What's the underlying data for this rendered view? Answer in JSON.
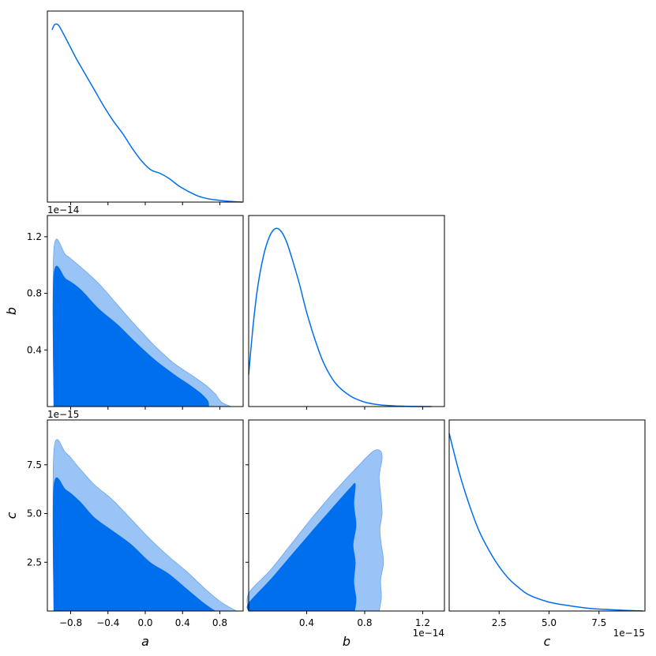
{
  "chart_data": {
    "type": "corner",
    "parameters": [
      "a",
      "b",
      "c"
    ],
    "colors": {
      "line": "#006FED",
      "inner_fill": "#006FED",
      "outer_fill": "#9AC3F6",
      "frame": "#000000"
    },
    "ranges": {
      "a": [
        -1.05,
        1.05
      ],
      "b": [
        0.0,
        1.35e-14
      ],
      "c": [
        0.0,
        9.8e-15
      ]
    },
    "ticks": {
      "a": {
        "values": [
          -0.8,
          -0.4,
          0.0,
          0.4,
          0.8
        ],
        "labels": [
          "−0.8",
          "−0.4",
          "0.0",
          "0.4",
          "0.8"
        ]
      },
      "b": {
        "values": [
          4e-15,
          8e-15,
          1.2e-14
        ],
        "labels": [
          "0.4",
          "0.8",
          "1.2"
        ],
        "offset": "1e−14"
      },
      "c": {
        "values": [
          2.5e-15,
          5e-15,
          7.5e-15
        ],
        "labels": [
          "2.5",
          "5.0",
          "7.5"
        ],
        "offset": "1e−15"
      }
    },
    "marginals": [
      {
        "param": "a",
        "x": [
          -1.0,
          -0.97,
          -0.93,
          -0.88,
          -0.82,
          -0.74,
          -0.64,
          -0.54,
          -0.44,
          -0.34,
          -0.24,
          -0.14,
          -0.04,
          0.06,
          0.16,
          0.26,
          0.36,
          0.46,
          0.56,
          0.66,
          0.76,
          0.86,
          0.96,
          1.04
        ],
        "y": [
          0.96,
          0.99,
          0.985,
          0.94,
          0.88,
          0.8,
          0.71,
          0.62,
          0.53,
          0.45,
          0.38,
          0.3,
          0.23,
          0.18,
          0.16,
          0.13,
          0.09,
          0.06,
          0.035,
          0.02,
          0.012,
          0.006,
          0.002,
          0.0
        ]
      },
      {
        "param": "b",
        "x": [
          0.0,
          3e-16,
          6e-16,
          1e-15,
          1.4e-15,
          1.8e-15,
          2.2e-15,
          2.6e-15,
          3e-15,
          3.5e-15,
          4e-15,
          4.6e-15,
          5.2e-15,
          6e-15,
          7e-15,
          8e-15,
          9e-15,
          1e-14,
          1.1e-14,
          1.2e-14,
          1.26e-14
        ],
        "y": [
          0.18,
          0.45,
          0.66,
          0.84,
          0.95,
          1.0,
          0.99,
          0.93,
          0.83,
          0.69,
          0.53,
          0.37,
          0.24,
          0.13,
          0.06,
          0.025,
          0.01,
          0.004,
          0.001,
          0.0,
          0.0
        ]
      },
      {
        "param": "c",
        "x": [
          0.0,
          5e-16,
          1e-15,
          1.5e-15,
          2e-15,
          2.5e-15,
          3e-15,
          3.5e-15,
          4e-15,
          5e-15,
          6e-15,
          7e-15,
          8e-15,
          9e-15,
          9.7e-15
        ],
        "y": [
          1.0,
          0.78,
          0.6,
          0.45,
          0.34,
          0.25,
          0.18,
          0.13,
          0.09,
          0.05,
          0.03,
          0.015,
          0.008,
          0.003,
          0.0
        ]
      }
    ],
    "contours": [
      {
        "x_param": "a",
        "y_param": "b",
        "levels": [
          {
            "name": "outer",
            "x": [
              -0.98,
              -0.98,
              -0.85,
              -0.7,
              -0.5,
              -0.3,
              -0.1,
              0.1,
              0.3,
              0.5,
              0.65,
              0.75,
              0.82,
              0.92
            ],
            "y": [
              0.0,
              1.11e-14,
              1.07e-14,
              9.9e-15,
              8.7e-15,
              7.2e-15,
              5.7e-15,
              4.3e-15,
              3.1e-15,
              2.2e-15,
              1.5e-15,
              9e-16,
              3e-16,
              0.0
            ]
          },
          {
            "name": "inner",
            "x": [
              -0.98,
              -0.98,
              -0.85,
              -0.7,
              -0.5,
              -0.3,
              -0.1,
              0.1,
              0.3,
              0.5,
              0.6,
              0.67,
              0.68
            ],
            "y": [
              0.0,
              9.3e-15,
              9e-15,
              8.3e-15,
              6.9e-15,
              5.8e-15,
              4.5e-15,
              3.3e-15,
              2.3e-15,
              1.4e-15,
              9e-16,
              4e-16,
              0.0
            ]
          }
        ]
      },
      {
        "x_param": "a",
        "y_param": "c",
        "levels": [
          {
            "name": "outer",
            "x": [
              -0.98,
              -0.98,
              -0.85,
              -0.72,
              -0.55,
              -0.35,
              -0.15,
              0.05,
              0.25,
              0.45,
              0.65,
              0.8,
              0.92,
              0.98
            ],
            "y": [
              0.0,
              8.2e-15,
              8.1e-15,
              7.4e-15,
              6.5e-15,
              5.7e-15,
              4.7e-15,
              3.7e-15,
              2.8e-15,
              2e-15,
              1.1e-15,
              5e-16,
              1.5e-16,
              0.0
            ]
          },
          {
            "name": "inner",
            "x": [
              -0.98,
              -0.98,
              -0.85,
              -0.7,
              -0.55,
              -0.35,
              -0.15,
              0.05,
              0.25,
              0.45,
              0.6,
              0.7,
              0.75
            ],
            "y": [
              0.0,
              6.4e-15,
              6.2e-15,
              5.6e-15,
              4.8e-15,
              4.1e-15,
              3.4e-15,
              2.5e-15,
              1.9e-15,
              1.1e-15,
              5e-16,
              1.5e-16,
              0.0
            ]
          }
        ]
      },
      {
        "x_param": "b",
        "y_param": "c",
        "levels": [
          {
            "name": "outer",
            "x": [
              0.0,
              0.0,
              1.5e-15,
              3e-15,
              4.5e-15,
              6e-15,
              7.5e-15,
              8.6e-15,
              9.1e-15,
              9.2e-15,
              9e-15,
              9.1e-15,
              9.2e-15,
              9.05e-15,
              9.15e-15,
              9.3e-15,
              9.1e-15,
              9.15e-15,
              9e-15
            ],
            "y": [
              0.0,
              9e-16,
              2.1e-15,
              3.5e-15,
              4.9e-15,
              6.2e-15,
              7.4e-15,
              8.2e-15,
              8.2e-15,
              7.8e-15,
              6.9e-15,
              6e-15,
              5e-15,
              4.2e-15,
              3.4e-15,
              2.5e-15,
              1.6e-15,
              7e-16,
              0.0
            ]
          },
          {
            "name": "inner",
            "x": [
              0.0,
              0.0,
              1.5e-15,
              3e-15,
              4.5e-15,
              5.8e-15,
              7e-15,
              7.35e-15,
              7.25e-15,
              7.4e-15,
              7.2e-15,
              7.35e-15,
              7.25e-15,
              7.4e-15,
              7.3e-15
            ],
            "y": [
              0.0,
              4e-16,
              1.6e-15,
              2.9e-15,
              4.2e-15,
              5.3e-15,
              6.3e-15,
              6.5e-15,
              5.5e-15,
              4.4e-15,
              3.4e-15,
              2.5e-15,
              1.5e-15,
              6e-16,
              0.0
            ]
          }
        ]
      }
    ]
  }
}
